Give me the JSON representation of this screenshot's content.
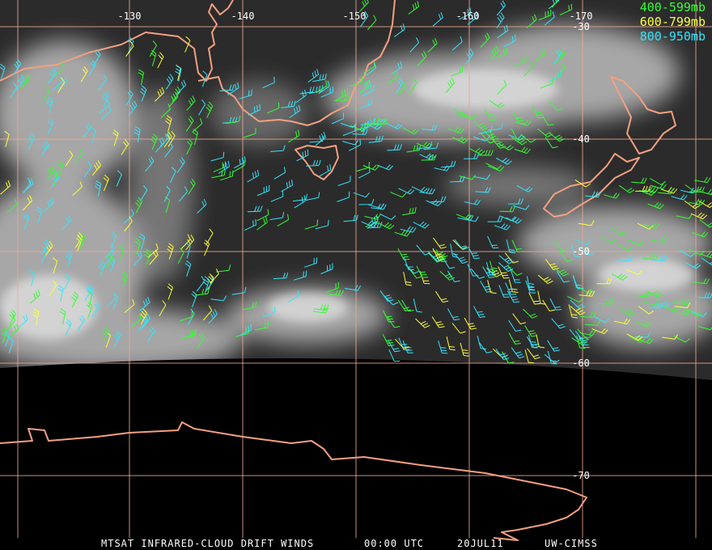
{
  "map": {
    "longitude_labels": [
      "-130",
      "-140",
      "-150",
      "-160",
      "-170"
    ],
    "latitude_labels": [
      "-30",
      "-40",
      "-50",
      "-60",
      "-70"
    ],
    "legend": [
      {
        "label": "400-599mb",
        "color": "#33ff33"
      },
      {
        "label": "600-799mb",
        "color": "#ffff33"
      },
      {
        "label": "800-950mb",
        "color": "#33e6ff"
      }
    ],
    "footer": {
      "product": "MTSAT INFRARED-CLOUD DRIFT WINDS",
      "time": "00:00 UTC",
      "date": "20JUL11",
      "source": "UW-CIMSS"
    }
  }
}
